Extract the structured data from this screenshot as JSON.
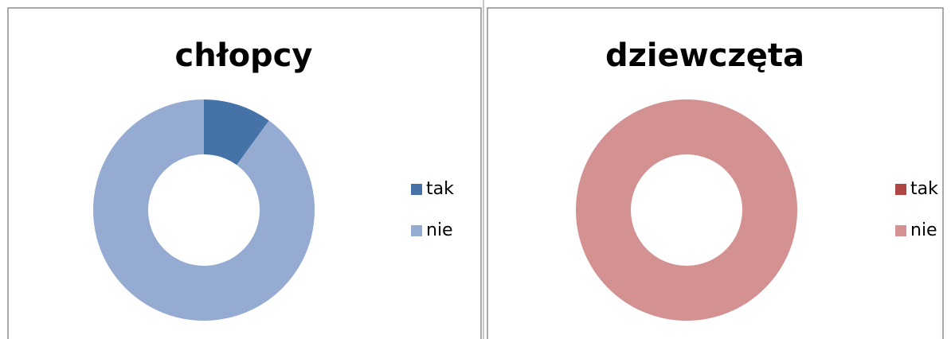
{
  "chart_data": [
    {
      "type": "donut",
      "title": "chłopcy",
      "categories": [
        "tak",
        "nie"
      ],
      "values": [
        10,
        90
      ],
      "colors": [
        "#4572a7",
        "#95abd2"
      ],
      "legend": "right"
    },
    {
      "type": "donut",
      "title": "dziewczęta",
      "categories": [
        "tak",
        "nie"
      ],
      "values": [
        0,
        100
      ],
      "colors": [
        "#b04644",
        "#d39291"
      ],
      "legend": "right"
    }
  ]
}
